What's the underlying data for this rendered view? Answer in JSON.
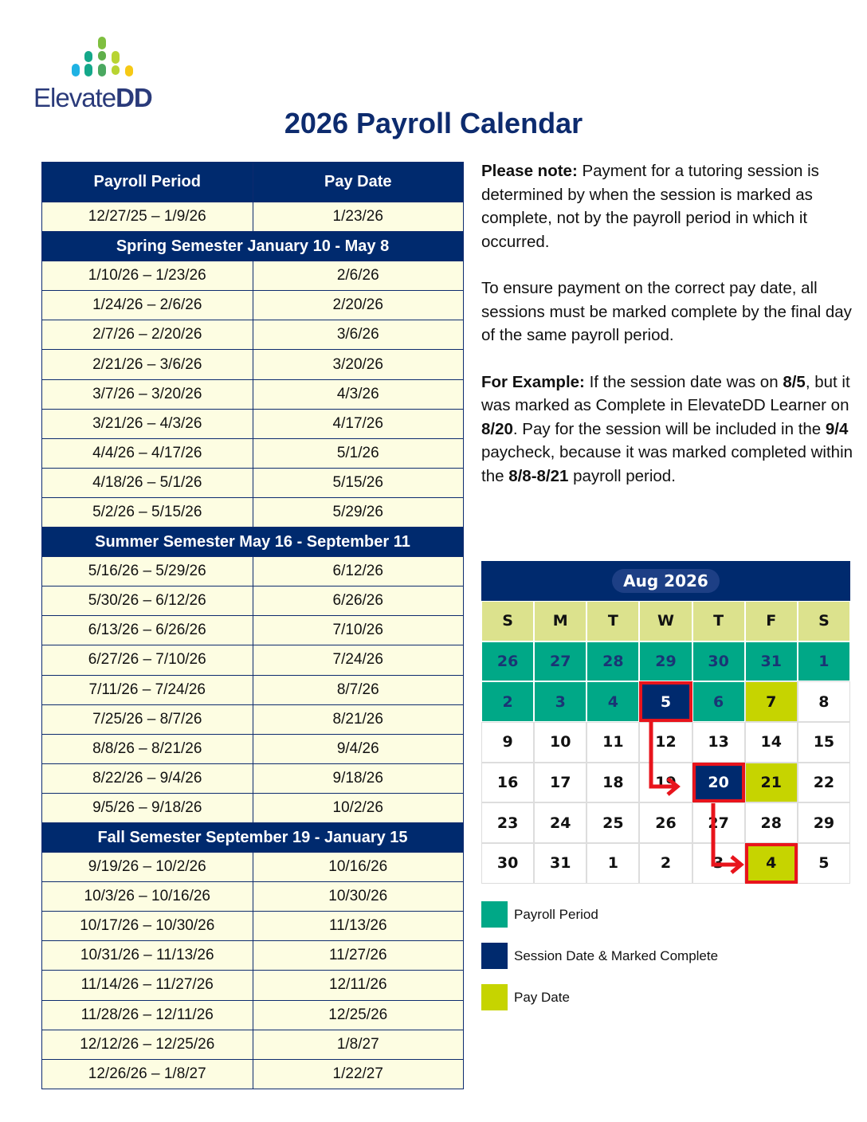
{
  "logo": {
    "text": "ElevateDD",
    "colors": [
      "#1fb2e3",
      "#14a88a",
      "#7fbf3f",
      "#b8d432",
      "#f6c915"
    ]
  },
  "title": "2026 Payroll Calendar",
  "table": {
    "headers": [
      "Payroll Period",
      "Pay Date"
    ],
    "rows": [
      {
        "period": "12/27/25 – 1/9/26",
        "pay": "1/23/26"
      },
      {
        "section": "Spring Semester January 10 - May 8"
      },
      {
        "period": "1/10/26 – 1/23/26",
        "pay": "2/6/26"
      },
      {
        "period": "1/24/26 – 2/6/26",
        "pay": "2/20/26"
      },
      {
        "period": "2/7/26 – 2/20/26",
        "pay": "3/6/26"
      },
      {
        "period": "2/21/26 – 3/6/26",
        "pay": "3/20/26"
      },
      {
        "period": "3/7/26 – 3/20/26",
        "pay": "4/3/26"
      },
      {
        "period": "3/21/26 – 4/3/26",
        "pay": "4/17/26"
      },
      {
        "period": "4/4/26 – 4/17/26",
        "pay": "5/1/26"
      },
      {
        "period": "4/18/26 – 5/1/26",
        "pay": "5/15/26"
      },
      {
        "period": "5/2/26 – 5/15/26",
        "pay": "5/29/26"
      },
      {
        "section": "Summer Semester May 16 - September 11"
      },
      {
        "period": "5/16/26 – 5/29/26",
        "pay": "6/12/26"
      },
      {
        "period": "5/30/26 – 6/12/26",
        "pay": "6/26/26"
      },
      {
        "period": "6/13/26 – 6/26/26",
        "pay": "7/10/26"
      },
      {
        "period": "6/27/26 – 7/10/26",
        "pay": "7/24/26"
      },
      {
        "period": "7/11/26 – 7/24/26",
        "pay": "8/7/26"
      },
      {
        "period": "7/25/26 – 8/7/26",
        "pay": "8/21/26"
      },
      {
        "period": "8/8/26 – 8/21/26",
        "pay": "9/4/26"
      },
      {
        "period": "8/22/26 – 9/4/26",
        "pay": "9/18/26"
      },
      {
        "period": "9/5/26 – 9/18/26",
        "pay": "10/2/26"
      },
      {
        "section": "Fall Semester September 19 - January 15"
      },
      {
        "period": "9/19/26 – 10/2/26",
        "pay": "10/16/26"
      },
      {
        "period": "10/3/26 – 10/16/26",
        "pay": "10/30/26"
      },
      {
        "period": "10/17/26 – 10/30/26",
        "pay": "11/13/26"
      },
      {
        "period": "10/31/26 – 11/13/26",
        "pay": "11/27/26"
      },
      {
        "period": "11/14/26 – 11/27/26",
        "pay": "12/11/26"
      },
      {
        "period": "11/28/26 – 12/11/26",
        "pay": "12/25/26"
      },
      {
        "period": "12/12/26 – 12/25/26",
        "pay": "1/8/27"
      },
      {
        "period": "12/26/26 – 1/8/27",
        "pay": "1/22/27"
      }
    ]
  },
  "notes": {
    "p1_bold": "Please note:",
    "p1": " Payment for a tutoring session is determined by when the session is marked as complete, not by the payroll period in which it occurred.",
    "p2": "To ensure payment on the correct pay date, all sessions must be marked complete by the final day of the same payroll period.",
    "p3": [
      {
        "b": "For Example:"
      },
      {
        "t": " If the session date was on "
      },
      {
        "b": "8/5"
      },
      {
        "t": ", but it was marked as Complete in ElevateDD Learner on "
      },
      {
        "b": "8/20"
      },
      {
        "t": ". Pay for the session will be included in the "
      },
      {
        "b": "9/4"
      },
      {
        "t": " paycheck, because it was marked completed within the "
      },
      {
        "b": "8/8-8/21"
      },
      {
        "t": " payroll period."
      }
    ]
  },
  "calendar": {
    "month": "Aug 2026",
    "weekdays": [
      "S",
      "M",
      "T",
      "W",
      "T",
      "F",
      "S"
    ],
    "weeks": [
      [
        {
          "d": "26",
          "t": "pp"
        },
        {
          "d": "27",
          "t": "pp"
        },
        {
          "d": "28",
          "t": "pp"
        },
        {
          "d": "29",
          "t": "pp"
        },
        {
          "d": "30",
          "t": "pp"
        },
        {
          "d": "31",
          "t": "pp"
        },
        {
          "d": "1",
          "t": "pp"
        }
      ],
      [
        {
          "d": "2",
          "t": "pp"
        },
        {
          "d": "3",
          "t": "pp"
        },
        {
          "d": "4",
          "t": "pp"
        },
        {
          "d": "5",
          "t": "sd",
          "box": true
        },
        {
          "d": "6",
          "t": "pp"
        },
        {
          "d": "7",
          "t": "pd"
        },
        {
          "d": "8"
        }
      ],
      [
        {
          "d": "9"
        },
        {
          "d": "10"
        },
        {
          "d": "11"
        },
        {
          "d": "12"
        },
        {
          "d": "13"
        },
        {
          "d": "14"
        },
        {
          "d": "15"
        }
      ],
      [
        {
          "d": "16"
        },
        {
          "d": "17"
        },
        {
          "d": "18"
        },
        {
          "d": "19"
        },
        {
          "d": "20",
          "t": "sd",
          "box": true
        },
        {
          "d": "21",
          "t": "pd"
        },
        {
          "d": "22"
        }
      ],
      [
        {
          "d": "23"
        },
        {
          "d": "24"
        },
        {
          "d": "25"
        },
        {
          "d": "26"
        },
        {
          "d": "27"
        },
        {
          "d": "28"
        },
        {
          "d": "29"
        }
      ],
      [
        {
          "d": "30"
        },
        {
          "d": "31"
        },
        {
          "d": "1"
        },
        {
          "d": "2"
        },
        {
          "d": "3"
        },
        {
          "d": "4",
          "t": "pd",
          "box": true
        },
        {
          "d": "5"
        }
      ]
    ],
    "colors": {
      "payroll_period": "#00a887",
      "session_date": "#002a6e",
      "pay_date": "#c6d400",
      "highlight": "#e8141c"
    }
  },
  "legend": [
    {
      "label": "Payroll Period",
      "color": "#00a887"
    },
    {
      "label": "Session Date & Marked Complete",
      "color": "#002a6e"
    },
    {
      "label": "Pay Date",
      "color": "#c6d400"
    }
  ]
}
